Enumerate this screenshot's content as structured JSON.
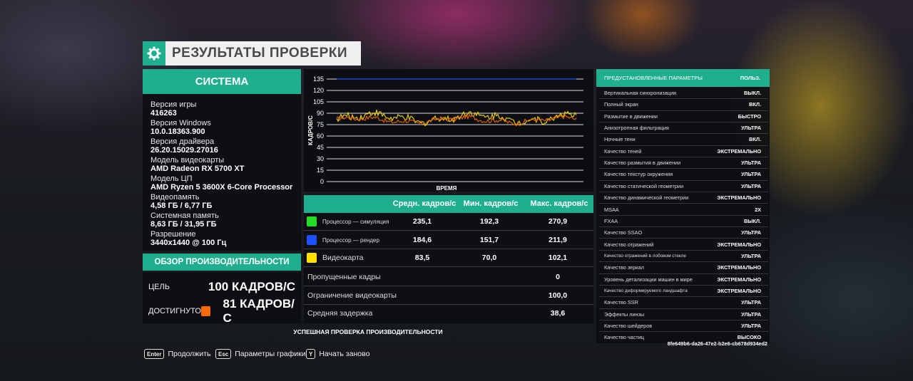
{
  "title": {
    "icon": "gear-icon",
    "text": "РЕЗУЛЬТАТЫ ПРОВЕРКИ"
  },
  "system": {
    "header": "СИСТЕМА",
    "rows": [
      {
        "label": "Версия игры",
        "value": "416263"
      },
      {
        "label": "Версия Windows",
        "value": "10.0.18363.900"
      },
      {
        "label": "Версия драйвера",
        "value": "26.20.15029.27016"
      },
      {
        "label": "Модель видеокарты",
        "value": "AMD Radeon RX 5700 XT"
      },
      {
        "label": "Модель ЦП",
        "value": "AMD Ryzen 5 3600X 6-Core Processor"
      },
      {
        "label": "Видеопамять",
        "value": "4,58 ГБ / 6,77 ГБ"
      },
      {
        "label": "Системная память",
        "value": "8,63 ГБ / 31,95 ГБ"
      },
      {
        "label": "Разрешение",
        "value": "3440x1440 @ 100 Гц"
      }
    ]
  },
  "overview": {
    "header": "ОБЗОР ПРОИЗВОДИТЕЛЬНОСТИ",
    "target_label": "ЦЕЛЬ",
    "target_value": "100 КАДРОВ/С",
    "achieved_label": "ДОСТИГНУТО",
    "achieved_value": "81 КАДРОВ/С",
    "achieved_color": "#ff6a00"
  },
  "chart_data": {
    "type": "line",
    "xlabel": "ВРЕМЯ",
    "ylabel": "КАДРОВ/С",
    "ylim": [
      0,
      135
    ],
    "yticks": [
      0,
      15,
      30,
      45,
      60,
      75,
      90,
      105,
      120,
      135
    ],
    "grid": true,
    "series": [
      {
        "color": "#1e50ff",
        "level": 135
      },
      {
        "color": "#ffe000",
        "level": 84
      },
      {
        "color": "#ff6a00",
        "level": 81
      }
    ]
  },
  "stats": {
    "headers": [
      "Средн. кадров/с",
      "Мин. кадров/с",
      "Макс. кадров/с"
    ],
    "rows": [
      {
        "label": "Процессор — симуляция",
        "color": "#22dd22",
        "avg": "235,1",
        "min": "192,3",
        "max": "270,9"
      },
      {
        "label": "Процессор — рендер",
        "color": "#1e50ff",
        "avg": "184,6",
        "min": "151,7",
        "max": "211,9"
      },
      {
        "label": "Видеокарта",
        "color": "#ffe000",
        "avg": "83,5",
        "min": "70,0",
        "max": "102,1"
      }
    ],
    "extra": [
      {
        "label": "Пропущенные кадры",
        "value": "0"
      },
      {
        "label": "Ограничение видеокарты",
        "value": "100,0"
      },
      {
        "label": "Средняя задержка",
        "value": "38,6"
      }
    ]
  },
  "success_text": "УСПЕШНАЯ ПРОВЕРКА ПРОИЗВОДИТЕЛЬНОСТИ",
  "hints": [
    {
      "key": "Enter",
      "label": "Продолжить"
    },
    {
      "key": "Esc",
      "label": "Параметры графики"
    },
    {
      "key": "Y",
      "label": "Начать заново"
    }
  ],
  "presets": {
    "header_left": "ПРЕДУСТАНОВЛЕННЫЕ ПАРАМЕТРЫ",
    "header_right": "ПОЛЬЗ.",
    "rows": [
      {
        "label": "Вертикальная синхронизация",
        "value": "ВЫКЛ."
      },
      {
        "label": "Полный экран",
        "value": "ВКЛ."
      },
      {
        "label": "Размытие в движении",
        "value": "БЫСТРО"
      },
      {
        "label": "Анизотропная фильтрация",
        "value": "УЛЬТРА"
      },
      {
        "label": "Ночные тени",
        "value": "ВКЛ."
      },
      {
        "label": "Качество теней",
        "value": "ЭКСТРЕМАЛЬНО"
      },
      {
        "label": "Качество размытия в движении",
        "value": "УЛЬТРА"
      },
      {
        "label": "Качество текстур окружения",
        "value": "УЛЬТРА"
      },
      {
        "label": "Качество статической геометрии",
        "value": "УЛЬТРА"
      },
      {
        "label": "Качество динамической геометрии",
        "value": "ЭКСТРЕМАЛЬНО"
      },
      {
        "label": "MSAA",
        "value": "2X"
      },
      {
        "label": "FXAA",
        "value": "ВЫКЛ."
      },
      {
        "label": "Качество SSAO",
        "value": "УЛЬТРА"
      },
      {
        "label": "Качество отражений",
        "value": "ЭКСТРЕМАЛЬНО"
      },
      {
        "label": "Качество отражений в лобовом стекле",
        "value": "УЛЬТРА"
      },
      {
        "label": "Качество зеркал",
        "value": "ЭКСТРЕМАЛЬНО"
      },
      {
        "label": "Уровень детализации машин в мире",
        "value": "ЭКСТРЕМАЛЬНО"
      },
      {
        "label": "Качество деформируемого ландшафта",
        "value": "ЭКСТРЕМАЛЬНО"
      },
      {
        "label": "Качество SSR",
        "value": "УЛЬТРА"
      },
      {
        "label": "Эффекты линзы",
        "value": "УЛЬТРА"
      },
      {
        "label": "Качество шейдеров",
        "value": "УЛЬТРА"
      },
      {
        "label": "Качество частиц",
        "value": "ВЫСОКО"
      }
    ],
    "uuid": "8fe649b6-da26-47e2-b2e6-cb678d934ed2"
  }
}
